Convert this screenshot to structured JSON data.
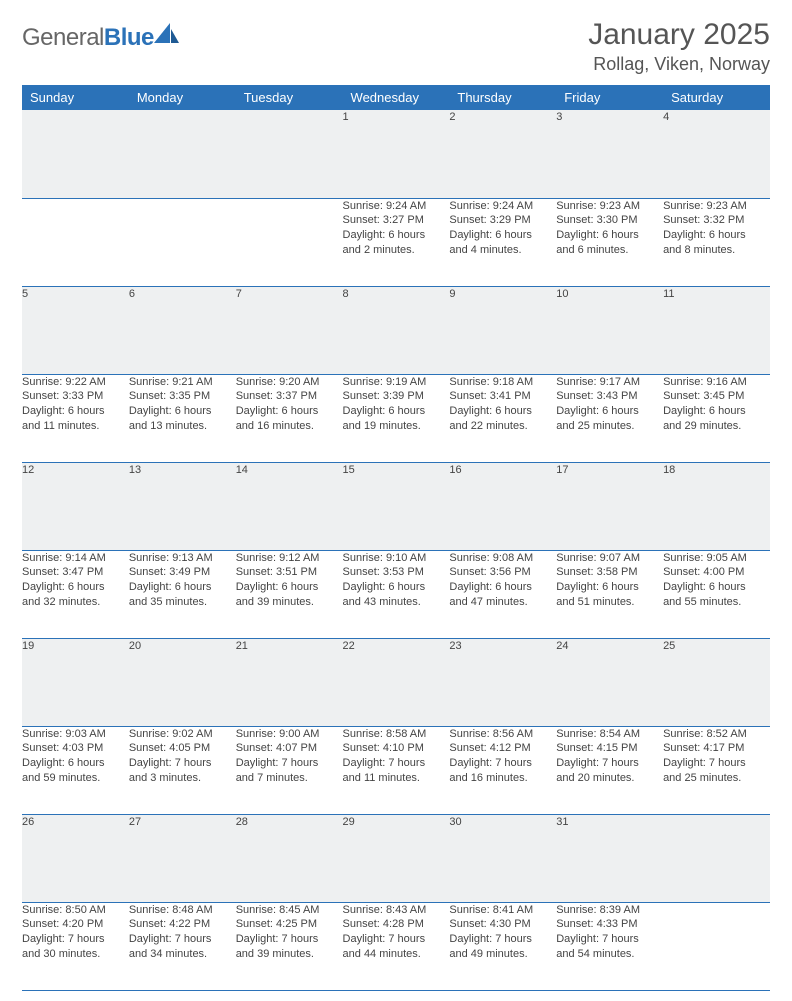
{
  "logo": {
    "general": "General",
    "blue": "Blue"
  },
  "title": "January 2025",
  "location": "Rollag, Viken, Norway",
  "colors": {
    "headerBg": "#2b72b8",
    "headerText": "#ffffff",
    "dayRowBg": "#eef0f1",
    "bodyText": "#444444",
    "accent": "#2b72b8"
  },
  "weekdays": [
    "Sunday",
    "Monday",
    "Tuesday",
    "Wednesday",
    "Thursday",
    "Friday",
    "Saturday"
  ],
  "weeks": [
    [
      null,
      null,
      null,
      {
        "n": "1",
        "sr": "Sunrise: 9:24 AM",
        "ss": "Sunset: 3:27 PM",
        "d1": "Daylight: 6 hours",
        "d2": "and 2 minutes."
      },
      {
        "n": "2",
        "sr": "Sunrise: 9:24 AM",
        "ss": "Sunset: 3:29 PM",
        "d1": "Daylight: 6 hours",
        "d2": "and 4 minutes."
      },
      {
        "n": "3",
        "sr": "Sunrise: 9:23 AM",
        "ss": "Sunset: 3:30 PM",
        "d1": "Daylight: 6 hours",
        "d2": "and 6 minutes."
      },
      {
        "n": "4",
        "sr": "Sunrise: 9:23 AM",
        "ss": "Sunset: 3:32 PM",
        "d1": "Daylight: 6 hours",
        "d2": "and 8 minutes."
      }
    ],
    [
      {
        "n": "5",
        "sr": "Sunrise: 9:22 AM",
        "ss": "Sunset: 3:33 PM",
        "d1": "Daylight: 6 hours",
        "d2": "and 11 minutes."
      },
      {
        "n": "6",
        "sr": "Sunrise: 9:21 AM",
        "ss": "Sunset: 3:35 PM",
        "d1": "Daylight: 6 hours",
        "d2": "and 13 minutes."
      },
      {
        "n": "7",
        "sr": "Sunrise: 9:20 AM",
        "ss": "Sunset: 3:37 PM",
        "d1": "Daylight: 6 hours",
        "d2": "and 16 minutes."
      },
      {
        "n": "8",
        "sr": "Sunrise: 9:19 AM",
        "ss": "Sunset: 3:39 PM",
        "d1": "Daylight: 6 hours",
        "d2": "and 19 minutes."
      },
      {
        "n": "9",
        "sr": "Sunrise: 9:18 AM",
        "ss": "Sunset: 3:41 PM",
        "d1": "Daylight: 6 hours",
        "d2": "and 22 minutes."
      },
      {
        "n": "10",
        "sr": "Sunrise: 9:17 AM",
        "ss": "Sunset: 3:43 PM",
        "d1": "Daylight: 6 hours",
        "d2": "and 25 minutes."
      },
      {
        "n": "11",
        "sr": "Sunrise: 9:16 AM",
        "ss": "Sunset: 3:45 PM",
        "d1": "Daylight: 6 hours",
        "d2": "and 29 minutes."
      }
    ],
    [
      {
        "n": "12",
        "sr": "Sunrise: 9:14 AM",
        "ss": "Sunset: 3:47 PM",
        "d1": "Daylight: 6 hours",
        "d2": "and 32 minutes."
      },
      {
        "n": "13",
        "sr": "Sunrise: 9:13 AM",
        "ss": "Sunset: 3:49 PM",
        "d1": "Daylight: 6 hours",
        "d2": "and 35 minutes."
      },
      {
        "n": "14",
        "sr": "Sunrise: 9:12 AM",
        "ss": "Sunset: 3:51 PM",
        "d1": "Daylight: 6 hours",
        "d2": "and 39 minutes."
      },
      {
        "n": "15",
        "sr": "Sunrise: 9:10 AM",
        "ss": "Sunset: 3:53 PM",
        "d1": "Daylight: 6 hours",
        "d2": "and 43 minutes."
      },
      {
        "n": "16",
        "sr": "Sunrise: 9:08 AM",
        "ss": "Sunset: 3:56 PM",
        "d1": "Daylight: 6 hours",
        "d2": "and 47 minutes."
      },
      {
        "n": "17",
        "sr": "Sunrise: 9:07 AM",
        "ss": "Sunset: 3:58 PM",
        "d1": "Daylight: 6 hours",
        "d2": "and 51 minutes."
      },
      {
        "n": "18",
        "sr": "Sunrise: 9:05 AM",
        "ss": "Sunset: 4:00 PM",
        "d1": "Daylight: 6 hours",
        "d2": "and 55 minutes."
      }
    ],
    [
      {
        "n": "19",
        "sr": "Sunrise: 9:03 AM",
        "ss": "Sunset: 4:03 PM",
        "d1": "Daylight: 6 hours",
        "d2": "and 59 minutes."
      },
      {
        "n": "20",
        "sr": "Sunrise: 9:02 AM",
        "ss": "Sunset: 4:05 PM",
        "d1": "Daylight: 7 hours",
        "d2": "and 3 minutes."
      },
      {
        "n": "21",
        "sr": "Sunrise: 9:00 AM",
        "ss": "Sunset: 4:07 PM",
        "d1": "Daylight: 7 hours",
        "d2": "and 7 minutes."
      },
      {
        "n": "22",
        "sr": "Sunrise: 8:58 AM",
        "ss": "Sunset: 4:10 PM",
        "d1": "Daylight: 7 hours",
        "d2": "and 11 minutes."
      },
      {
        "n": "23",
        "sr": "Sunrise: 8:56 AM",
        "ss": "Sunset: 4:12 PM",
        "d1": "Daylight: 7 hours",
        "d2": "and 16 minutes."
      },
      {
        "n": "24",
        "sr": "Sunrise: 8:54 AM",
        "ss": "Sunset: 4:15 PM",
        "d1": "Daylight: 7 hours",
        "d2": "and 20 minutes."
      },
      {
        "n": "25",
        "sr": "Sunrise: 8:52 AM",
        "ss": "Sunset: 4:17 PM",
        "d1": "Daylight: 7 hours",
        "d2": "and 25 minutes."
      }
    ],
    [
      {
        "n": "26",
        "sr": "Sunrise: 8:50 AM",
        "ss": "Sunset: 4:20 PM",
        "d1": "Daylight: 7 hours",
        "d2": "and 30 minutes."
      },
      {
        "n": "27",
        "sr": "Sunrise: 8:48 AM",
        "ss": "Sunset: 4:22 PM",
        "d1": "Daylight: 7 hours",
        "d2": "and 34 minutes."
      },
      {
        "n": "28",
        "sr": "Sunrise: 8:45 AM",
        "ss": "Sunset: 4:25 PM",
        "d1": "Daylight: 7 hours",
        "d2": "and 39 minutes."
      },
      {
        "n": "29",
        "sr": "Sunrise: 8:43 AM",
        "ss": "Sunset: 4:28 PM",
        "d1": "Daylight: 7 hours",
        "d2": "and 44 minutes."
      },
      {
        "n": "30",
        "sr": "Sunrise: 8:41 AM",
        "ss": "Sunset: 4:30 PM",
        "d1": "Daylight: 7 hours",
        "d2": "and 49 minutes."
      },
      {
        "n": "31",
        "sr": "Sunrise: 8:39 AM",
        "ss": "Sunset: 4:33 PM",
        "d1": "Daylight: 7 hours",
        "d2": "and 54 minutes."
      },
      null
    ]
  ]
}
